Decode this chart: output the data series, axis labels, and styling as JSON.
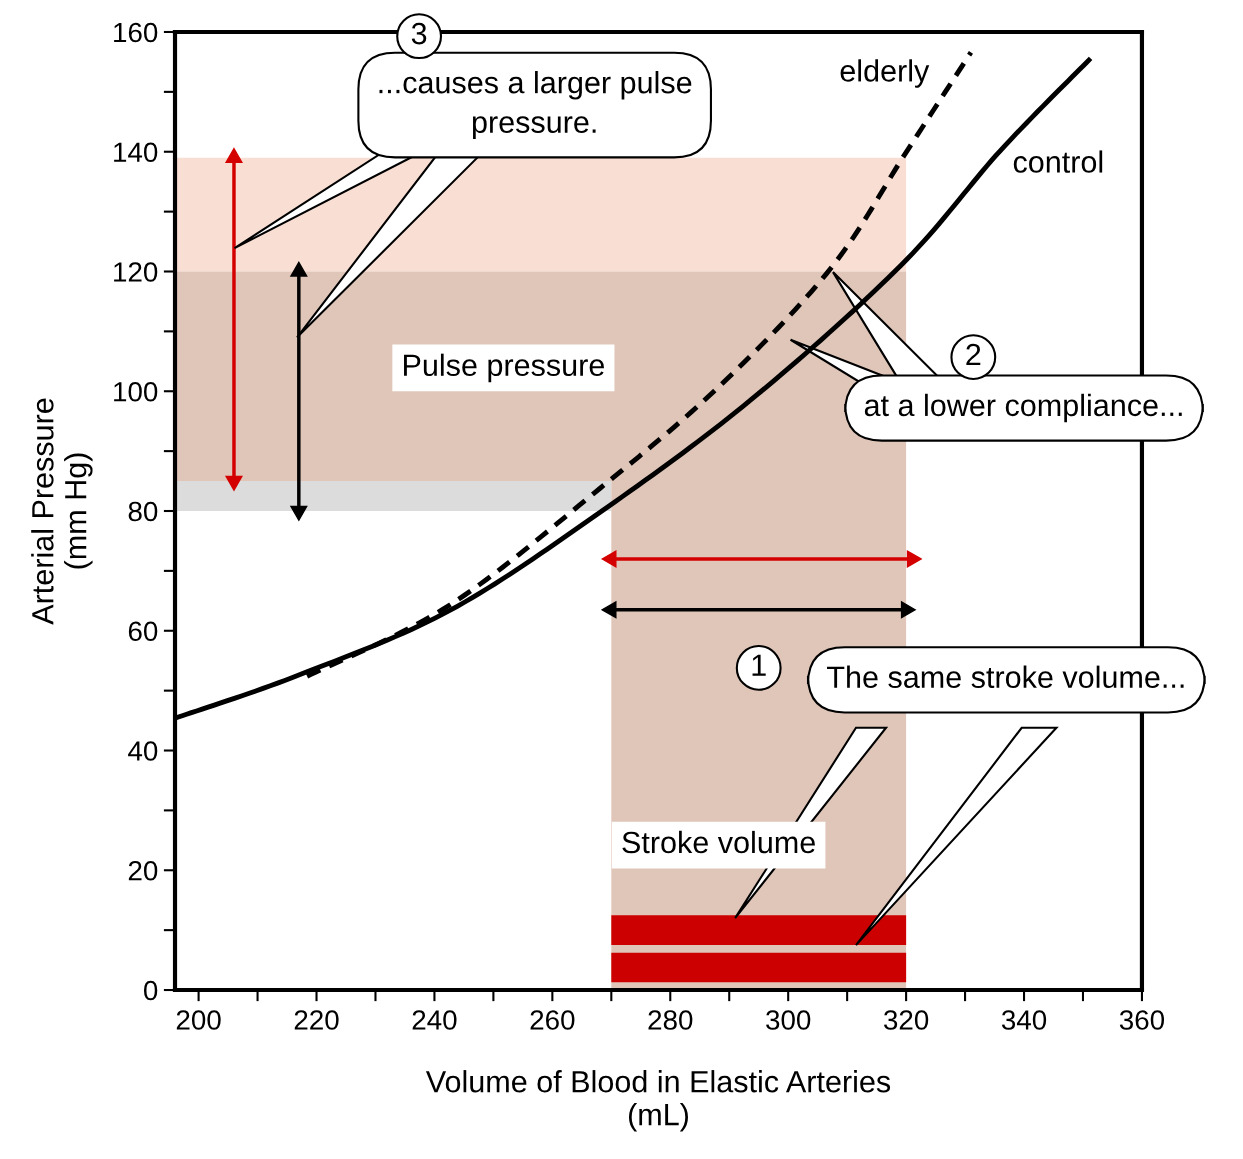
{
  "chart_data": {
    "type": "line",
    "xlabel": "Volume of Blood in Elastic Arteries\n(mL)",
    "ylabel": "Arterial Pressure\n(mm Hg)",
    "xlim": [
      196,
      360
    ],
    "ylim": [
      0,
      160
    ],
    "xticks": [
      200,
      {
        "value": 210,
        "label": null
      },
      220,
      {
        "value": 230,
        "label": null
      },
      240,
      {
        "value": 250,
        "label": null
      },
      260,
      {
        "value": 270,
        "label": null
      },
      280,
      {
        "value": 290,
        "label": null
      },
      300,
      {
        "value": 310,
        "label": null
      },
      320,
      {
        "value": 330,
        "label": null
      },
      340,
      {
        "value": 350,
        "label": null
      },
      360
    ],
    "yticks": [
      0,
      {
        "value": 10,
        "label": null
      },
      20,
      {
        "value": 30,
        "label": null
      },
      40,
      {
        "value": 50,
        "label": null
      },
      60,
      {
        "value": 70,
        "label": null
      },
      80,
      {
        "value": 90,
        "label": null
      },
      100,
      {
        "value": 110,
        "label": null
      },
      120,
      {
        "value": 130,
        "label": null
      },
      140,
      {
        "value": 150,
        "label": null
      },
      160
    ],
    "grid": false,
    "legend": false,
    "series": [
      {
        "name": "control",
        "color": "#000000",
        "line_style": "solid",
        "x": [
          196,
          217,
          242.6,
          268.1,
          293.6,
          319.1,
          336,
          351
        ],
        "values": [
          45.4,
          52.6,
          63.4,
          79.8,
          98.5,
          121,
          140.2,
          155.3
        ]
      },
      {
        "name": "elderly",
        "type": "line",
        "color": "#000000",
        "line_style": "dashed",
        "x": [
          218.4,
          242.6,
          268.1,
          288.5,
          307.2,
          320,
          331
        ],
        "values": [
          52.4,
          64.3,
          83.8,
          101,
          120.5,
          139.9,
          156.6
        ]
      },
      {
        "type": "line",
        "marker": "triangle",
        "line_style": "solid",
        "color": "#d40000",
        "x": [
          206,
          206
        ],
        "values": [
          85,
          139
        ]
      },
      {
        "type": "line",
        "marker": "triangle",
        "line_style": "solid",
        "color": "#000000",
        "x": [
          217,
          217
        ],
        "values": [
          80,
          120
        ]
      },
      {
        "type": "line",
        "marker": "triangle",
        "line_style": "solid",
        "color": "#d40000",
        "x": [
          270,
          321
        ],
        "values": [
          72,
          72
        ]
      },
      {
        "type": "line",
        "marker": "triangle",
        "line_style": "solid",
        "color": "#000000",
        "x": [
          270,
          320
        ],
        "values": [
          63.5,
          63.5
        ]
      }
    ],
    "annotations": [
      "3",
      "...causes a larger pulse\npressure.",
      "2",
      "at a lower compliance...",
      "1",
      "The same stroke volume...",
      "Pulse pressure",
      "Stroke volume"
    ]
  }
}
